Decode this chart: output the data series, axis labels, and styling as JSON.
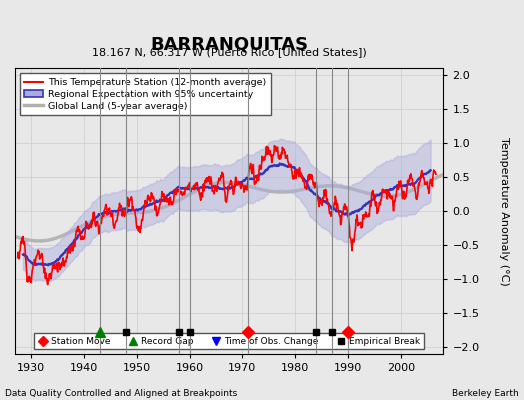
{
  "title": "BARRANQUITAS",
  "subtitle": "18.167 N, 66.317 W (Puerto Rico [United States])",
  "ylabel": "Temperature Anomaly (°C)",
  "xlabel_bottom": "Data Quality Controlled and Aligned at Breakpoints",
  "xlabel_right": "Berkeley Earth",
  "xlim": [
    1927,
    2008
  ],
  "ylim": [
    -2.1,
    2.1
  ],
  "yticks": [
    -2,
    -1.5,
    -1,
    -0.5,
    0,
    0.5,
    1,
    1.5,
    2
  ],
  "xticks": [
    1930,
    1940,
    1950,
    1960,
    1970,
    1980,
    1990,
    2000
  ],
  "bg_color": "#e8e8e8",
  "plot_bg_color": "#e8e8e8",
  "station_move_years": [
    1971,
    1990
  ],
  "record_gap_years": [
    1943
  ],
  "time_obs_change_years": [],
  "empirical_break_years": [
    1948,
    1958,
    1960,
    1984,
    1987
  ],
  "vline_color": "#888888",
  "vline_lw": 0.8,
  "grid_color": "#cccccc",
  "station_color": "red",
  "regional_color": "#3333bb",
  "regional_fill_color": "#aaaadd",
  "global_color": "#b0b0b0",
  "marker_y": -1.77,
  "figsize": [
    5.24,
    4.0
  ],
  "dpi": 100
}
